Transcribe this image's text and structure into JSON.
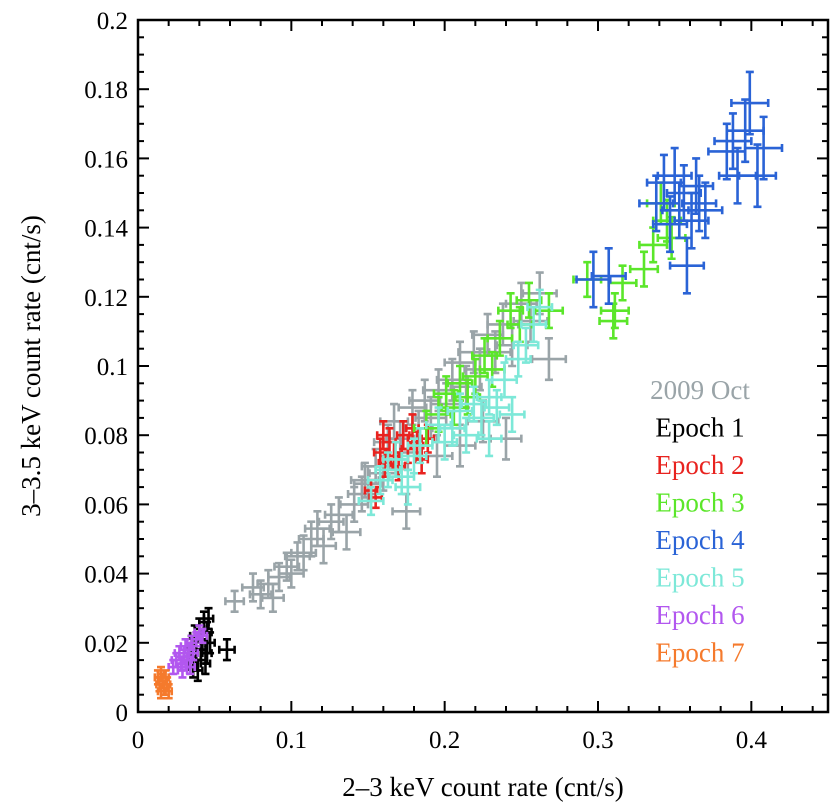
{
  "chart_data": {
    "type": "scatter",
    "title": "",
    "xlabel": "2–3 keV count rate (cnt/s)",
    "ylabel": "3–3.5 keV count rate (cnt/s)",
    "xlim": [
      0,
      0.45
    ],
    "ylim": [
      0,
      0.2
    ],
    "x_ticks": [
      0,
      0.1,
      0.2,
      0.3,
      0.4
    ],
    "x_tick_labels": [
      "0",
      "0.1",
      "0.2",
      "0.3",
      "0.4"
    ],
    "y_ticks": [
      0,
      0.02,
      0.04,
      0.06,
      0.08,
      0.1,
      0.12,
      0.14,
      0.16,
      0.18,
      0.2
    ],
    "y_tick_labels": [
      "0",
      "0.02",
      "0.04",
      "0.06",
      "0.08",
      "0.1",
      "0.12",
      "0.14",
      "0.16",
      "0.18",
      "0.2"
    ],
    "grid": false,
    "legend_position": "right",
    "series": [
      {
        "name": "2009 Oct",
        "color": "#9aa4a8",
        "points": [
          [
            0.063,
            0.032,
            0.006,
            0.003
          ],
          [
            0.075,
            0.036,
            0.007,
            0.004
          ],
          [
            0.08,
            0.034,
            0.007,
            0.004
          ],
          [
            0.085,
            0.037,
            0.007,
            0.004
          ],
          [
            0.088,
            0.033,
            0.007,
            0.004
          ],
          [
            0.092,
            0.039,
            0.007,
            0.004
          ],
          [
            0.097,
            0.042,
            0.008,
            0.004
          ],
          [
            0.1,
            0.04,
            0.008,
            0.004
          ],
          [
            0.104,
            0.045,
            0.008,
            0.004
          ],
          [
            0.108,
            0.046,
            0.008,
            0.005
          ],
          [
            0.113,
            0.05,
            0.008,
            0.005
          ],
          [
            0.117,
            0.053,
            0.008,
            0.005
          ],
          [
            0.121,
            0.048,
            0.008,
            0.005
          ],
          [
            0.126,
            0.055,
            0.008,
            0.005
          ],
          [
            0.131,
            0.057,
            0.009,
            0.005
          ],
          [
            0.136,
            0.052,
            0.009,
            0.005
          ],
          [
            0.141,
            0.06,
            0.009,
            0.005
          ],
          [
            0.146,
            0.063,
            0.009,
            0.005
          ],
          [
            0.15,
            0.066,
            0.009,
            0.005
          ],
          [
            0.155,
            0.071,
            0.009,
            0.005
          ],
          [
            0.16,
            0.069,
            0.009,
            0.005
          ],
          [
            0.163,
            0.078,
            0.009,
            0.005
          ],
          [
            0.167,
            0.084,
            0.009,
            0.005
          ],
          [
            0.171,
            0.079,
            0.009,
            0.005
          ],
          [
            0.176,
            0.075,
            0.009,
            0.005
          ],
          [
            0.179,
            0.088,
            0.009,
            0.005
          ],
          [
            0.183,
            0.082,
            0.009,
            0.005
          ],
          [
            0.187,
            0.09,
            0.01,
            0.006
          ],
          [
            0.191,
            0.085,
            0.01,
            0.006
          ],
          [
            0.196,
            0.093,
            0.01,
            0.006
          ],
          [
            0.201,
            0.089,
            0.01,
            0.006
          ],
          [
            0.205,
            0.096,
            0.01,
            0.006
          ],
          [
            0.21,
            0.101,
            0.01,
            0.006
          ],
          [
            0.214,
            0.094,
            0.01,
            0.006
          ],
          [
            0.219,
            0.104,
            0.01,
            0.006
          ],
          [
            0.223,
            0.099,
            0.01,
            0.006
          ],
          [
            0.228,
            0.109,
            0.01,
            0.006
          ],
          [
            0.233,
            0.104,
            0.01,
            0.006
          ],
          [
            0.238,
            0.112,
            0.01,
            0.006
          ],
          [
            0.244,
            0.106,
            0.01,
            0.006
          ],
          [
            0.25,
            0.118,
            0.01,
            0.006
          ],
          [
            0.256,
            0.113,
            0.011,
            0.006
          ],
          [
            0.262,
            0.121,
            0.011,
            0.006
          ],
          [
            0.268,
            0.102,
            0.011,
            0.006
          ],
          [
            0.24,
            0.079,
            0.01,
            0.006
          ],
          [
            0.225,
            0.084,
            0.01,
            0.006
          ],
          [
            0.21,
            0.077,
            0.01,
            0.006
          ],
          [
            0.195,
            0.074,
            0.01,
            0.006
          ],
          [
            0.175,
            0.058,
            0.009,
            0.005
          ],
          [
            0.148,
            0.067,
            0.009,
            0.005
          ]
        ]
      },
      {
        "name": "Epoch 1",
        "color": "#000000",
        "points": [
          [
            0.033,
            0.016,
            0.003,
            0.003
          ],
          [
            0.035,
            0.019,
            0.003,
            0.003
          ],
          [
            0.037,
            0.022,
            0.003,
            0.003
          ],
          [
            0.038,
            0.015,
            0.003,
            0.003
          ],
          [
            0.04,
            0.024,
            0.003,
            0.003
          ],
          [
            0.041,
            0.018,
            0.003,
            0.003
          ],
          [
            0.042,
            0.021,
            0.003,
            0.003
          ],
          [
            0.043,
            0.026,
            0.003,
            0.003
          ],
          [
            0.044,
            0.014,
            0.003,
            0.003
          ],
          [
            0.045,
            0.023,
            0.003,
            0.003
          ],
          [
            0.046,
            0.027,
            0.003,
            0.003
          ],
          [
            0.047,
            0.02,
            0.003,
            0.003
          ],
          [
            0.045,
            0.017,
            0.003,
            0.003
          ],
          [
            0.039,
            0.012,
            0.003,
            0.003
          ],
          [
            0.036,
            0.013,
            0.003,
            0.003
          ],
          [
            0.058,
            0.018,
            0.005,
            0.003
          ]
        ]
      },
      {
        "name": "Epoch 2",
        "color": "#e8231f",
        "points": [
          [
            0.152,
            0.064,
            0.004,
            0.003
          ],
          [
            0.155,
            0.062,
            0.004,
            0.003
          ],
          [
            0.158,
            0.075,
            0.004,
            0.004
          ],
          [
            0.161,
            0.072,
            0.004,
            0.004
          ],
          [
            0.164,
            0.078,
            0.004,
            0.004
          ],
          [
            0.167,
            0.074,
            0.004,
            0.004
          ],
          [
            0.17,
            0.071,
            0.004,
            0.004
          ],
          [
            0.173,
            0.08,
            0.004,
            0.004
          ],
          [
            0.176,
            0.076,
            0.004,
            0.004
          ],
          [
            0.179,
            0.082,
            0.004,
            0.004
          ],
          [
            0.182,
            0.077,
            0.004,
            0.004
          ],
          [
            0.185,
            0.073,
            0.004,
            0.004
          ],
          [
            0.189,
            0.079,
            0.004,
            0.004
          ],
          [
            0.16,
            0.08,
            0.004,
            0.004
          ]
        ]
      },
      {
        "name": "Epoch 3",
        "color": "#5be62a",
        "points": [
          [
            0.196,
            0.086,
            0.008,
            0.005
          ],
          [
            0.201,
            0.092,
            0.008,
            0.005
          ],
          [
            0.206,
            0.088,
            0.008,
            0.005
          ],
          [
            0.21,
            0.095,
            0.008,
            0.005
          ],
          [
            0.215,
            0.091,
            0.008,
            0.005
          ],
          [
            0.22,
            0.097,
            0.008,
            0.005
          ],
          [
            0.226,
            0.103,
            0.008,
            0.005
          ],
          [
            0.231,
            0.099,
            0.008,
            0.005
          ],
          [
            0.236,
            0.108,
            0.008,
            0.005
          ],
          [
            0.243,
            0.116,
            0.008,
            0.005
          ],
          [
            0.249,
            0.112,
            0.008,
            0.005
          ],
          [
            0.255,
            0.119,
            0.008,
            0.005
          ],
          [
            0.268,
            0.116,
            0.009,
            0.005
          ],
          [
            0.293,
            0.125,
            0.009,
            0.005
          ],
          [
            0.311,
            0.116,
            0.009,
            0.005
          ],
          [
            0.316,
            0.124,
            0.009,
            0.005
          ],
          [
            0.31,
            0.113,
            0.009,
            0.005
          ],
          [
            0.33,
            0.128,
            0.009,
            0.005
          ],
          [
            0.336,
            0.135,
            0.009,
            0.005
          ],
          [
            0.341,
            0.147,
            0.009,
            0.006
          ],
          [
            0.345,
            0.142,
            0.009,
            0.006
          ],
          [
            0.348,
            0.137,
            0.009,
            0.006
          ],
          [
            0.188,
            0.082,
            0.008,
            0.005
          ]
        ]
      },
      {
        "name": "Epoch 4",
        "color": "#2a63d6",
        "points": [
          [
            0.297,
            0.125,
            0.011,
            0.008
          ],
          [
            0.307,
            0.126,
            0.011,
            0.008
          ],
          [
            0.338,
            0.147,
            0.011,
            0.008
          ],
          [
            0.343,
            0.153,
            0.011,
            0.008
          ],
          [
            0.347,
            0.141,
            0.011,
            0.008
          ],
          [
            0.35,
            0.155,
            0.011,
            0.008
          ],
          [
            0.353,
            0.145,
            0.011,
            0.008
          ],
          [
            0.356,
            0.15,
            0.011,
            0.008
          ],
          [
            0.358,
            0.129,
            0.011,
            0.008
          ],
          [
            0.361,
            0.142,
            0.011,
            0.008
          ],
          [
            0.364,
            0.152,
            0.011,
            0.008
          ],
          [
            0.366,
            0.147,
            0.011,
            0.008
          ],
          [
            0.37,
            0.145,
            0.011,
            0.008
          ],
          [
            0.384,
            0.162,
            0.012,
            0.008
          ],
          [
            0.388,
            0.165,
            0.012,
            0.008
          ],
          [
            0.391,
            0.155,
            0.012,
            0.008
          ],
          [
            0.396,
            0.168,
            0.012,
            0.009
          ],
          [
            0.399,
            0.176,
            0.012,
            0.009
          ],
          [
            0.404,
            0.155,
            0.012,
            0.009
          ],
          [
            0.408,
            0.163,
            0.012,
            0.009
          ]
        ]
      },
      {
        "name": "Epoch 5",
        "color": "#7de8d8",
        "points": [
          [
            0.152,
            0.061,
            0.008,
            0.004
          ],
          [
            0.158,
            0.067,
            0.008,
            0.004
          ],
          [
            0.163,
            0.07,
            0.008,
            0.005
          ],
          [
            0.168,
            0.073,
            0.008,
            0.005
          ],
          [
            0.172,
            0.068,
            0.008,
            0.005
          ],
          [
            0.176,
            0.065,
            0.008,
            0.005
          ],
          [
            0.18,
            0.074,
            0.008,
            0.005
          ],
          [
            0.184,
            0.077,
            0.008,
            0.005
          ],
          [
            0.196,
            0.083,
            0.008,
            0.005
          ],
          [
            0.2,
            0.078,
            0.008,
            0.005
          ],
          [
            0.205,
            0.082,
            0.008,
            0.005
          ],
          [
            0.21,
            0.087,
            0.008,
            0.005
          ],
          [
            0.214,
            0.08,
            0.008,
            0.005
          ],
          [
            0.219,
            0.089,
            0.008,
            0.005
          ],
          [
            0.224,
            0.085,
            0.008,
            0.005
          ],
          [
            0.229,
            0.091,
            0.008,
            0.005
          ],
          [
            0.234,
            0.088,
            0.008,
            0.005
          ],
          [
            0.239,
            0.096,
            0.008,
            0.005
          ],
          [
            0.244,
            0.086,
            0.008,
            0.005
          ],
          [
            0.248,
            0.102,
            0.008,
            0.005
          ],
          [
            0.253,
            0.106,
            0.008,
            0.005
          ],
          [
            0.258,
            0.112,
            0.008,
            0.005
          ],
          [
            0.262,
            0.117,
            0.008,
            0.005
          ],
          [
            0.229,
            0.079,
            0.008,
            0.005
          ]
        ]
      },
      {
        "name": "Epoch 6",
        "color": "#b257ef",
        "points": [
          [
            0.023,
            0.013,
            0.003,
            0.002
          ],
          [
            0.025,
            0.015,
            0.003,
            0.002
          ],
          [
            0.027,
            0.017,
            0.003,
            0.002
          ],
          [
            0.028,
            0.014,
            0.003,
            0.002
          ],
          [
            0.03,
            0.016,
            0.003,
            0.002
          ],
          [
            0.031,
            0.019,
            0.003,
            0.002
          ],
          [
            0.032,
            0.015,
            0.003,
            0.002
          ],
          [
            0.033,
            0.018,
            0.003,
            0.002
          ],
          [
            0.035,
            0.02,
            0.003,
            0.002
          ],
          [
            0.036,
            0.017,
            0.003,
            0.002
          ],
          [
            0.038,
            0.021,
            0.003,
            0.002
          ],
          [
            0.04,
            0.023,
            0.003,
            0.002
          ],
          [
            0.042,
            0.022,
            0.003,
            0.002
          ],
          [
            0.029,
            0.012,
            0.003,
            0.002
          ],
          [
            0.034,
            0.013,
            0.003,
            0.002
          ]
        ]
      },
      {
        "name": "Epoch 7",
        "color": "#f57a2c",
        "points": [
          [
            0.013,
            0.01,
            0.002,
            0.002
          ],
          [
            0.014,
            0.008,
            0.002,
            0.002
          ],
          [
            0.015,
            0.011,
            0.002,
            0.002
          ],
          [
            0.016,
            0.009,
            0.002,
            0.002
          ],
          [
            0.017,
            0.007,
            0.002,
            0.002
          ],
          [
            0.018,
            0.01,
            0.002,
            0.002
          ],
          [
            0.019,
            0.008,
            0.002,
            0.002
          ],
          [
            0.015,
            0.006,
            0.002,
            0.002
          ],
          [
            0.02,
            0.006,
            0.002,
            0.002
          ]
        ]
      }
    ]
  }
}
